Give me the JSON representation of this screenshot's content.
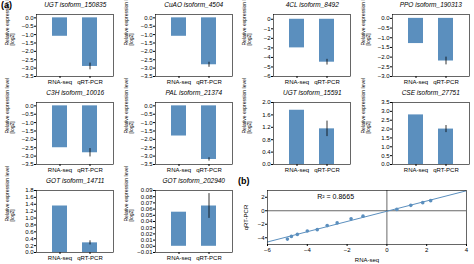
{
  "chart_data": [
    {
      "type": "bar",
      "panel_label": "(a)",
      "title": "UGT isoform_150835",
      "categories": [
        "RNA-seq",
        "qRT-PCR"
      ],
      "values": [
        -1.1,
        -2.9
      ],
      "errors": [
        0.0,
        0.2
      ],
      "color": "#5b8fbe",
      "ylabel": "Relative expression level\n[log2]",
      "ylim": [
        -3.5,
        0.2
      ],
      "yticks": [
        {
          "value": 0,
          "label": "0.0"
        },
        -0.5,
        {
          "value": -1.0,
          "label": "−1.0"
        },
        -1.5,
        {
          "value": -2.0,
          "label": "−2.0"
        },
        -2.5,
        {
          "value": -3.0,
          "label": "−3.0"
        },
        -3.5
      ]
    },
    {
      "type": "bar",
      "title": "CuAO isoform_4504",
      "categories": [
        "RNA-seq",
        "qRT-PCR"
      ],
      "values": [
        -1.1,
        -2.8
      ],
      "errors": [
        0.0,
        0.15
      ],
      "color": "#5b8fbe",
      "ylabel": "Relative expression level\n[log2]",
      "ylim": [
        -3.5,
        0.2
      ],
      "yticks": [
        {
          "value": 0,
          "label": "0.0"
        },
        -0.5,
        {
          "value": -1.0,
          "label": "−1.0"
        },
        -1.5,
        {
          "value": -2.0,
          "label": "−2.0"
        },
        -2.5,
        {
          "value": -3.0,
          "label": "−3.0"
        },
        -3.5
      ]
    },
    {
      "type": "bar",
      "title": "4CL isoform_8492",
      "categories": [
        "RNA-seq",
        "qRT-PCR"
      ],
      "values": [
        -3.0,
        -4.5
      ],
      "errors": [
        0.0,
        0.3
      ],
      "color": "#5b8fbe",
      "ylabel": "Relative expression level\n[log2]",
      "ylim": [
        -6.0,
        0.5
      ],
      "yticks": [
        0,
        -1,
        -2,
        -3,
        -4,
        -5,
        -6
      ]
    },
    {
      "type": "bar",
      "title": "PPO isoform_190313",
      "categories": [
        "RNA-seq",
        "qRT-PCR"
      ],
      "values": [
        -1.3,
        -2.2
      ],
      "errors": [
        0.0,
        0.2
      ],
      "color": "#5b8fbe",
      "ylabel": "Relative expression level\n[log2]",
      "ylim": [
        -3.0,
        0.2
      ],
      "yticks": [
        {
          "value": 0,
          "label": "0.0"
        },
        -0.5,
        {
          "value": -1.0,
          "label": "−1.0"
        },
        -1.5,
        {
          "value": -2.0,
          "label": "−2.0"
        },
        -2.5,
        {
          "value": -3.0,
          "label": "−3.0"
        }
      ]
    },
    {
      "type": "bar",
      "title": "C3H isoform_10016",
      "categories": [
        "RNA-seq",
        "qRT-PCR"
      ],
      "values": [
        -2.5,
        -2.8
      ],
      "errors": [
        0.0,
        0.25
      ],
      "color": "#5b8fbe",
      "ylabel": "Relative expression level\n[log2]",
      "ylim": [
        -3.5,
        0.2
      ],
      "yticks": [
        {
          "value": 0,
          "label": "0.0"
        },
        -0.5,
        {
          "value": -1.0,
          "label": "−1.0"
        },
        -1.5,
        {
          "value": -2.0,
          "label": "−2.0"
        },
        -2.5,
        {
          "value": -3.0,
          "label": "−3.0"
        },
        -3.5
      ]
    },
    {
      "type": "bar",
      "title": "PAL isoform_21374",
      "categories": [
        "RNA-seq",
        "qRT-PCR"
      ],
      "values": [
        -1.8,
        -3.2
      ],
      "errors": [
        0.0,
        0.1
      ],
      "color": "#5b8fbe",
      "ylabel": "Relative expression level\n[log2]",
      "ylim": [
        -3.5,
        0.2
      ],
      "yticks": [
        {
          "value": 0,
          "label": "0.0"
        },
        -0.5,
        {
          "value": -1.0,
          "label": "−1.0"
        },
        -1.5,
        {
          "value": -2.0,
          "label": "−2.0"
        },
        -2.5,
        {
          "value": -3.0,
          "label": "−3.0"
        },
        -3.5
      ]
    },
    {
      "type": "bar",
      "title": "UGT isoform_15591",
      "categories": [
        "RNA-seq",
        "qRT-PCR"
      ],
      "values": [
        1.75,
        1.15
      ],
      "errors": [
        0.0,
        0.25
      ],
      "color": "#5b8fbe",
      "ylabel": "Relative expression level\n[log2]",
      "ylim": [
        0,
        2.0
      ],
      "yticks": [
        {
          "value": 0,
          "label": "0.0"
        },
        0.4,
        0.8,
        1.2,
        1.6,
        {
          "value": 2.0,
          "label": "2.0"
        }
      ]
    },
    {
      "type": "bar",
      "title": "CSE isoform_27751",
      "categories": [
        "RNA-seq",
        "qRT-PCR"
      ],
      "values": [
        2.8,
        2.0
      ],
      "errors": [
        0.0,
        0.2
      ],
      "color": "#5b8fbe",
      "ylabel": "Relative expression level\n[log2]",
      "ylim": [
        0,
        3.5
      ],
      "yticks": [
        {
          "value": 0,
          "label": "0.0"
        },
        0.5,
        {
          "value": 1.0,
          "label": "1.0"
        },
        1.5,
        {
          "value": 2.0,
          "label": "2.0"
        },
        2.5,
        {
          "value": 3.0,
          "label": "3.0"
        },
        3.5
      ]
    },
    {
      "type": "bar",
      "title": "GOT isoform_14711",
      "categories": [
        "RNA-seq",
        "qRT-PCR"
      ],
      "values": [
        1.35,
        0.28
      ],
      "errors": [
        0.0,
        0.06
      ],
      "color": "#5b8fbe",
      "ylabel": "Relative expression level\n[log2]",
      "ylim": [
        0,
        1.8
      ],
      "yticks": [
        {
          "value": 0,
          "label": "0.0"
        },
        0.2,
        0.4,
        0.6,
        0.8,
        {
          "value": 1.0,
          "label": "1.0"
        },
        1.2,
        1.4,
        1.6,
        1.8
      ]
    },
    {
      "type": "bar",
      "title": "GOT isoform_202940",
      "categories": [
        "RNA-seq",
        "qRT-PCR"
      ],
      "values": [
        0.055,
        0.065
      ],
      "errors": [
        0.0,
        0.02
      ],
      "color": "#5b8fbe",
      "ylabel": "Relative expression level\n[log2]",
      "ylim": [
        -0.01,
        0.09
      ],
      "yticks": [
        -0.01,
        {
          "value": 0,
          "label": "0.00"
        },
        0.01,
        0.02,
        0.03,
        0.04,
        0.05,
        0.06,
        0.07,
        0.08,
        0.09
      ]
    },
    {
      "type": "scatter",
      "panel_label": "(b)",
      "xlabel": "RNA-seq",
      "ylabel": "qRT-PCR",
      "annotation": "R² = 0.8665",
      "color": "#5b8fbe",
      "x": [
        -5.0,
        -4.8,
        -4.5,
        -4.0,
        -3.5,
        -3.0,
        -2.5,
        -1.8,
        -1.2,
        0.5,
        1.2,
        1.8,
        2.2
      ],
      "y": [
        -4.2,
        -3.8,
        -3.5,
        -3.0,
        -2.8,
        -2.2,
        -1.8,
        -1.2,
        -0.8,
        0.2,
        0.8,
        1.2,
        1.5
      ],
      "fit": {
        "x": [
          -6,
          4
        ],
        "y": [
          -4.6232,
          2.9614
        ]
      },
      "xlim": [
        -6,
        4
      ],
      "ylim": [
        -5,
        3
      ],
      "xticks": [
        -6,
        -4,
        -2,
        0,
        2,
        4
      ],
      "yticks": [
        -4,
        -2,
        0,
        2
      ]
    }
  ]
}
